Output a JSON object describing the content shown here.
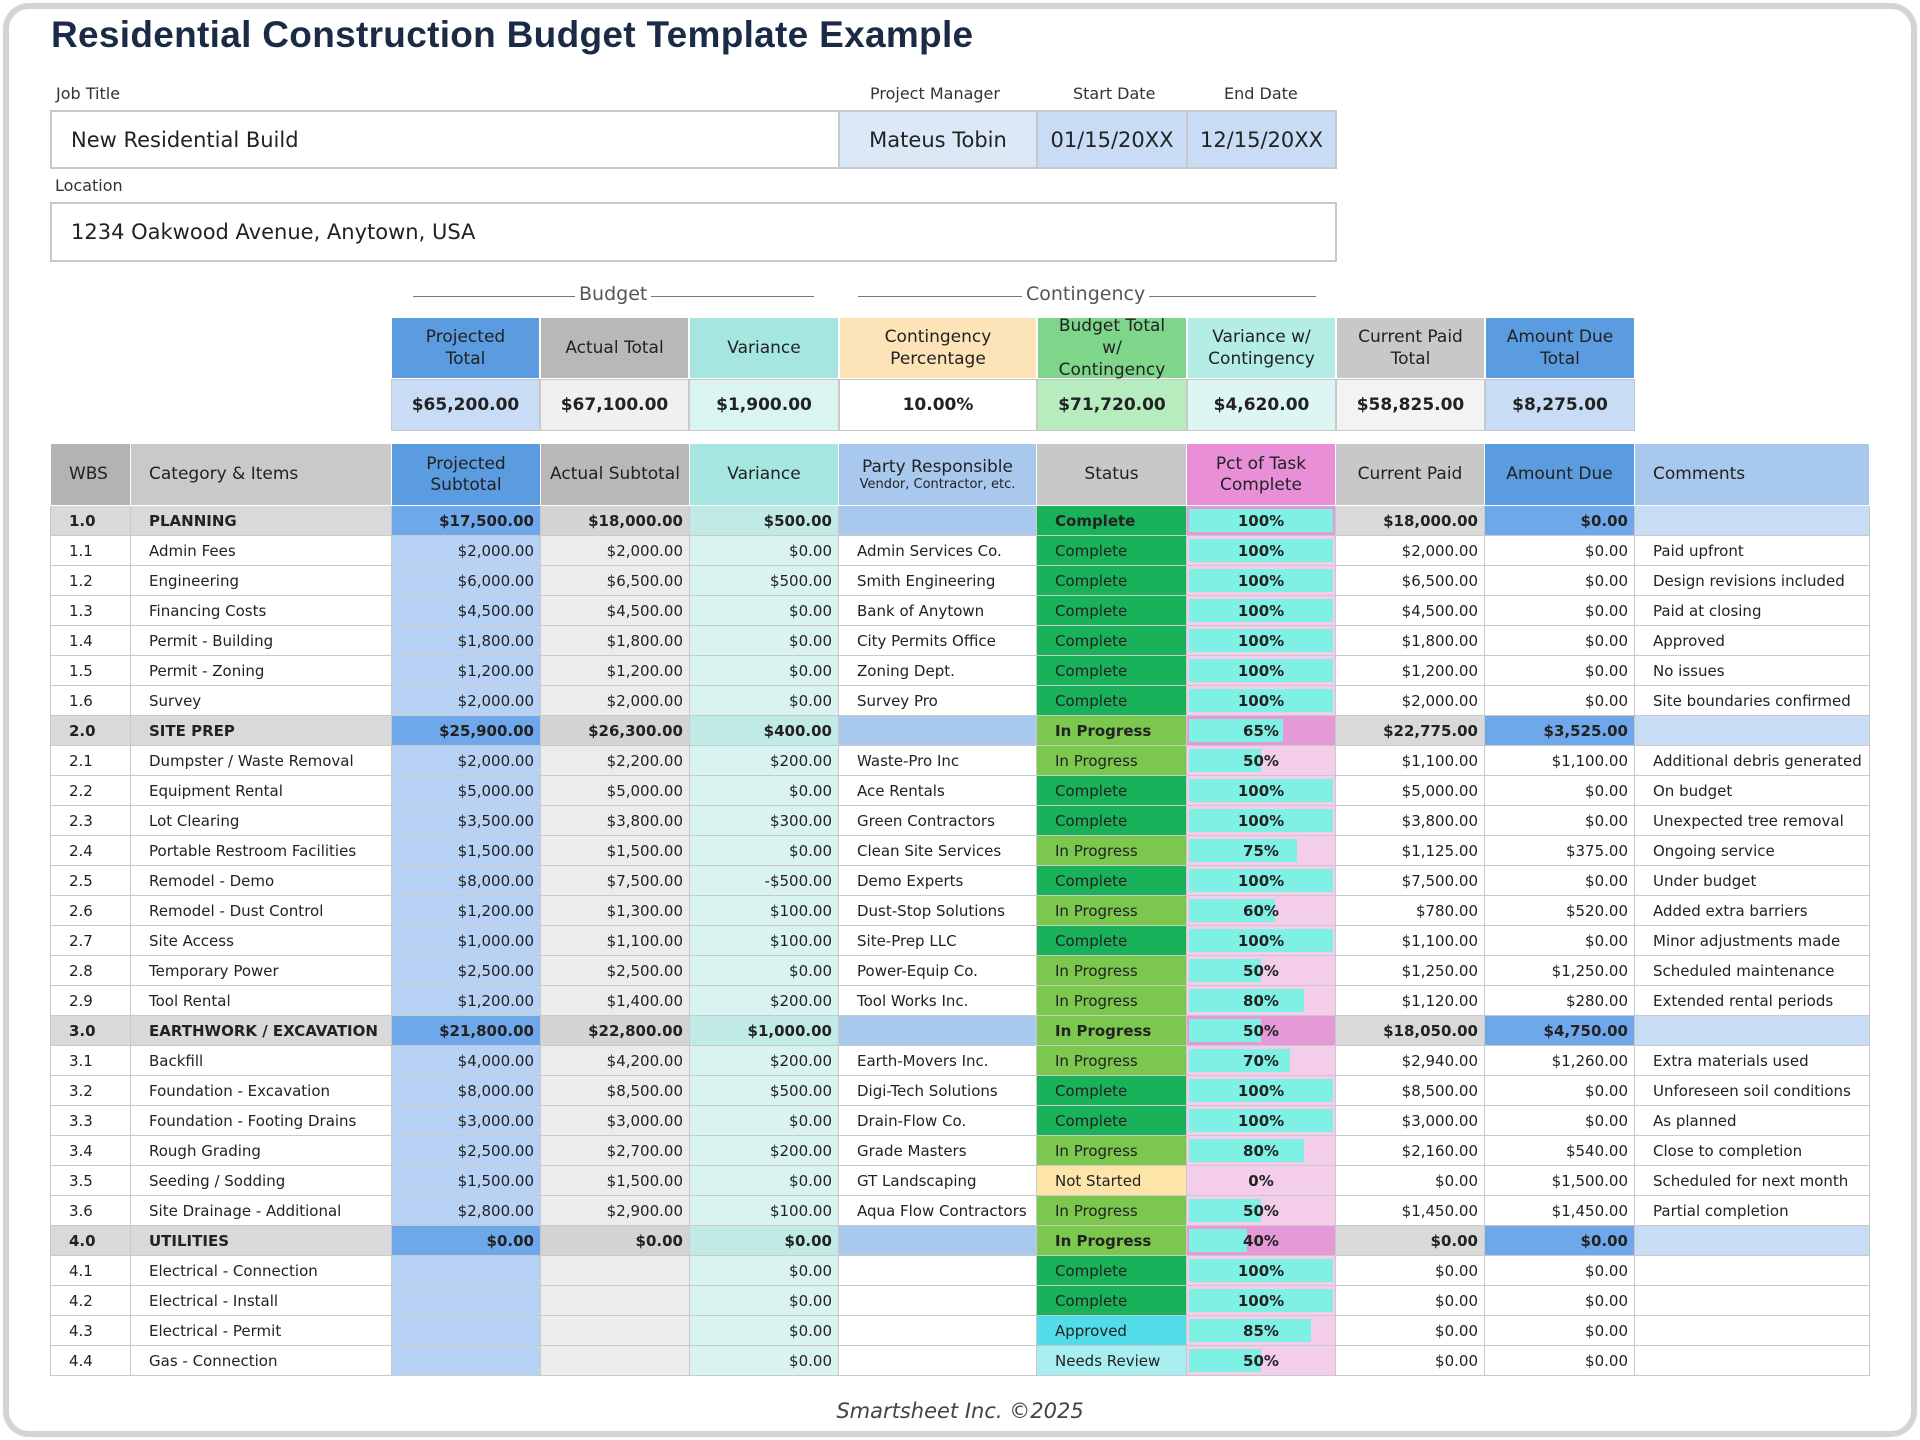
{
  "title": "Residential Construction Budget Template Example",
  "job": {
    "job_title_label": "Job Title",
    "job_title": "New Residential Build",
    "pm_label": "Project Manager",
    "pm": "Mateus Tobin",
    "start_label": "Start Date",
    "start": "01/15/20XX",
    "end_label": "End Date",
    "end": "12/15/20XX",
    "location_label": "Location",
    "location": "1234 Oakwood Avenue, Anytown, USA"
  },
  "summary": {
    "budget_label": "Budget",
    "contingency_label": "Contingency",
    "headers": [
      "Projected Total",
      "Actual Total",
      "Variance",
      "Contingency Percentage",
      "Budget Total w/ Contingency",
      "Variance w/ Contingency",
      "Current Paid Total",
      "Amount Due Total"
    ],
    "values": [
      "$65,200.00",
      "$67,100.00",
      "$1,900.00",
      "10.00%",
      "$71,720.00",
      "$4,620.00",
      "$58,825.00",
      "$8,275.00"
    ]
  },
  "table": {
    "headers": [
      "WBS",
      "Category & Items",
      "Projected Subtotal",
      "Actual Subtotal",
      "Variance",
      "Party Responsible",
      "Status",
      "Pct of Task Complete",
      "Current Paid",
      "Amount Due",
      "Comments"
    ],
    "party_sub": "Vendor, Contractor, etc.",
    "status_colors": {
      "Complete": "#19b25b",
      "In Progress": "#7cc84f",
      "Not Started": "#fde4a8",
      "Approved": "#52dbe8",
      "Needs Review": "#a8edf0"
    },
    "rows": [
      [
        "1.0",
        "PLANNING",
        "$17,500.00",
        "$18,000.00",
        "$500.00",
        null,
        "Complete",
        "100%",
        "$18,000.00",
        "$0.00",
        null
      ],
      [
        "1.1",
        "Admin Fees",
        "$2,000.00",
        "$2,000.00",
        "$0.00",
        "Admin Services Co.",
        "Complete",
        "100%",
        "$2,000.00",
        "$0.00",
        "Paid upfront"
      ],
      [
        "1.2",
        "Engineering",
        "$6,000.00",
        "$6,500.00",
        "$500.00",
        "Smith Engineering",
        "Complete",
        "100%",
        "$6,500.00",
        "$0.00",
        "Design revisions included"
      ],
      [
        "1.3",
        "Financing Costs",
        "$4,500.00",
        "$4,500.00",
        "$0.00",
        "Bank of Anytown",
        "Complete",
        "100%",
        "$4,500.00",
        "$0.00",
        "Paid at closing"
      ],
      [
        "1.4",
        "Permit - Building",
        "$1,800.00",
        "$1,800.00",
        "$0.00",
        "City Permits Office",
        "Complete",
        "100%",
        "$1,800.00",
        "$0.00",
        "Approved"
      ],
      [
        "1.5",
        "Permit - Zoning",
        "$1,200.00",
        "$1,200.00",
        "$0.00",
        "Zoning Dept.",
        "Complete",
        "100%",
        "$1,200.00",
        "$0.00",
        "No issues"
      ],
      [
        "1.6",
        "Survey",
        "$2,000.00",
        "$2,000.00",
        "$0.00",
        "Survey Pro",
        "Complete",
        "100%",
        "$2,000.00",
        "$0.00",
        "Site boundaries confirmed"
      ],
      [
        "2.0",
        "SITE PREP",
        "$25,900.00",
        "$26,300.00",
        "$400.00",
        null,
        "In Progress",
        "65%",
        "$22,775.00",
        "$3,525.00",
        null
      ],
      [
        "2.1",
        "Dumpster / Waste Removal",
        "$2,000.00",
        "$2,200.00",
        "$200.00",
        "Waste-Pro Inc",
        "In Progress",
        "50%",
        "$1,100.00",
        "$1,100.00",
        "Additional debris generated"
      ],
      [
        "2.2",
        "Equipment Rental",
        "$5,000.00",
        "$5,000.00",
        "$0.00",
        "Ace Rentals",
        "Complete",
        "100%",
        "$5,000.00",
        "$0.00",
        "On budget"
      ],
      [
        "2.3",
        "Lot Clearing",
        "$3,500.00",
        "$3,800.00",
        "$300.00",
        "Green Contractors",
        "Complete",
        "100%",
        "$3,800.00",
        "$0.00",
        "Unexpected tree removal"
      ],
      [
        "2.4",
        "Portable Restroom Facilities",
        "$1,500.00",
        "$1,500.00",
        "$0.00",
        "Clean Site Services",
        "In Progress",
        "75%",
        "$1,125.00",
        "$375.00",
        "Ongoing service"
      ],
      [
        "2.5",
        "Remodel - Demo",
        "$8,000.00",
        "$7,500.00",
        "-$500.00",
        "Demo Experts",
        "Complete",
        "100%",
        "$7,500.00",
        "$0.00",
        "Under budget"
      ],
      [
        "2.6",
        "Remodel - Dust Control",
        "$1,200.00",
        "$1,300.00",
        "$100.00",
        "Dust-Stop Solutions",
        "In Progress",
        "60%",
        "$780.00",
        "$520.00",
        "Added extra barriers"
      ],
      [
        "2.7",
        "Site Access",
        "$1,000.00",
        "$1,100.00",
        "$100.00",
        "Site-Prep LLC",
        "Complete",
        "100%",
        "$1,100.00",
        "$0.00",
        "Minor adjustments made"
      ],
      [
        "2.8",
        "Temporary Power",
        "$2,500.00",
        "$2,500.00",
        "$0.00",
        "Power-Equip Co.",
        "In Progress",
        "50%",
        "$1,250.00",
        "$1,250.00",
        "Scheduled maintenance"
      ],
      [
        "2.9",
        "Tool Rental",
        "$1,200.00",
        "$1,400.00",
        "$200.00",
        "Tool Works Inc.",
        "In Progress",
        "80%",
        "$1,120.00",
        "$280.00",
        "Extended rental periods"
      ],
      [
        "3.0",
        "EARTHWORK / EXCAVATION",
        "$21,800.00",
        "$22,800.00",
        "$1,000.00",
        null,
        "In Progress",
        "50%",
        "$18,050.00",
        "$4,750.00",
        null
      ],
      [
        "3.1",
        "Backfill",
        "$4,000.00",
        "$4,200.00",
        "$200.00",
        "Earth-Movers Inc.",
        "In Progress",
        "70%",
        "$2,940.00",
        "$1,260.00",
        "Extra materials used"
      ],
      [
        "3.2",
        "Foundation - Excavation",
        "$8,000.00",
        "$8,500.00",
        "$500.00",
        "Digi-Tech Solutions",
        "Complete",
        "100%",
        "$8,500.00",
        "$0.00",
        "Unforeseen soil conditions"
      ],
      [
        "3.3",
        "Foundation - Footing Drains",
        "$3,000.00",
        "$3,000.00",
        "$0.00",
        "Drain-Flow Co.",
        "Complete",
        "100%",
        "$3,000.00",
        "$0.00",
        "As planned"
      ],
      [
        "3.4",
        "Rough Grading",
        "$2,500.00",
        "$2,700.00",
        "$200.00",
        "Grade Masters",
        "In Progress",
        "80%",
        "$2,160.00",
        "$540.00",
        "Close to completion"
      ],
      [
        "3.5",
        "Seeding / Sodding",
        "$1,500.00",
        "$1,500.00",
        "$0.00",
        "GT Landscaping",
        "Not Started",
        "0%",
        "$0.00",
        "$1,500.00",
        "Scheduled for next month"
      ],
      [
        "3.6",
        "Site Drainage - Additional",
        "$2,800.00",
        "$2,900.00",
        "$100.00",
        "Aqua Flow Contractors",
        "In Progress",
        "50%",
        "$1,450.00",
        "$1,450.00",
        "Partial completion"
      ],
      [
        "4.0",
        "UTILITIES",
        "$0.00",
        "$0.00",
        "$0.00",
        null,
        "In Progress",
        "40%",
        "$0.00",
        "$0.00",
        null
      ],
      [
        "4.1",
        "Electrical - Connection",
        null,
        null,
        "$0.00",
        null,
        "Complete",
        "100%",
        "$0.00",
        "$0.00",
        null
      ],
      [
        "4.2",
        "Electrical - Install",
        null,
        null,
        "$0.00",
        null,
        "Complete",
        "100%",
        "$0.00",
        "$0.00",
        null
      ],
      [
        "4.3",
        "Electrical - Permit",
        null,
        null,
        "$0.00",
        null,
        "Approved",
        "85%",
        "$0.00",
        "$0.00",
        null
      ],
      [
        "4.4",
        "Gas - Connection",
        null,
        null,
        "$0.00",
        null,
        "Needs Review",
        "50%",
        "$0.00",
        "$0.00",
        null
      ]
    ]
  },
  "footer": "Smartsheet Inc. ©2025"
}
